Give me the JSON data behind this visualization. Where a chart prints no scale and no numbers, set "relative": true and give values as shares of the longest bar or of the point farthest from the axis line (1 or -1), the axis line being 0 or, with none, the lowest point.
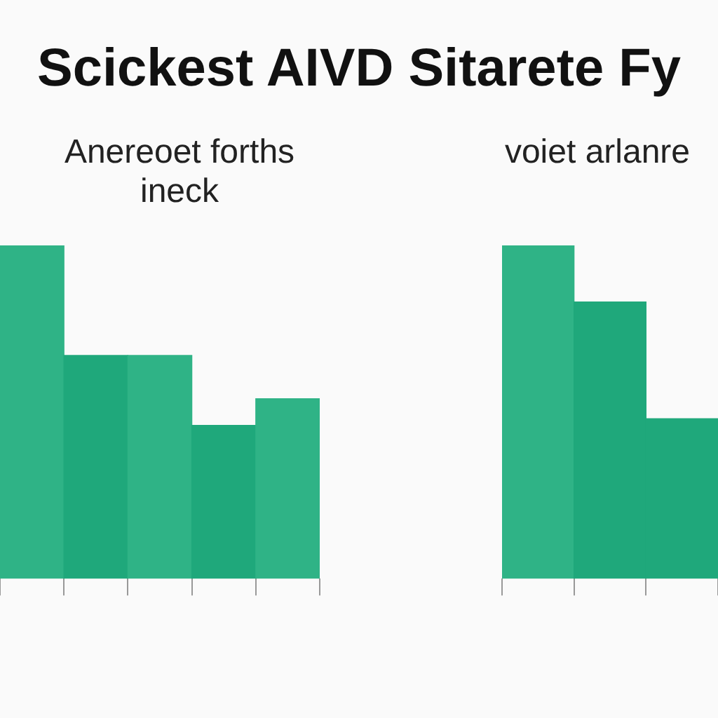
{
  "chart_data": [
    {
      "type": "bar",
      "title": "Scickest AIVD Sitarete Fy",
      "subtitle": "Anereoet forths ineck",
      "relative": true,
      "categories": [
        null,
        null,
        null,
        null,
        null
      ],
      "values": [
        1,
        0.67,
        0.67,
        0.46,
        0.54
      ],
      "colors": [
        "#2fb386",
        "#1fa87b",
        "#2fb386",
        "#1fa87b",
        "#2fb386"
      ]
    },
    {
      "type": "bar",
      "subtitle": "voiet arlanre",
      "relative": true,
      "categories": [
        null,
        null,
        null
      ],
      "values": [
        1,
        0.83,
        0.48
      ],
      "colors": [
        "#2fb386",
        "#1fa87b",
        "#1fa87b"
      ]
    }
  ]
}
